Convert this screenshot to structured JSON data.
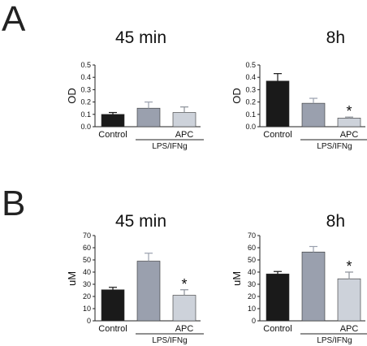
{
  "panels": [
    {
      "letter": "A"
    },
    {
      "letter": "B"
    }
  ],
  "chart_data": [
    {
      "type": "bar",
      "panel": "A",
      "title": "45 min",
      "ylabel": "OD",
      "ylim": [
        0,
        0.5
      ],
      "yticks": [
        "0.0",
        "0.1",
        "0.2",
        "0.3",
        "0.4",
        "0.5"
      ],
      "categories": [
        "Control",
        "",
        "APC"
      ],
      "group_label": "LPS/IFNg",
      "values": [
        0.1,
        0.15,
        0.115
      ],
      "errors": [
        0.015,
        0.05,
        0.045
      ],
      "bar_colors": [
        "#1a1a1a",
        "#9aa0ae",
        "#cdd2da"
      ],
      "significant": [
        false,
        false,
        false
      ]
    },
    {
      "type": "bar",
      "panel": "A",
      "title": "8h",
      "ylabel": "OD",
      "ylim": [
        0,
        0.5
      ],
      "yticks": [
        "0.0",
        "0.1",
        "0.2",
        "0.3",
        "0.4",
        "0.5"
      ],
      "categories": [
        "Control",
        "",
        "APC"
      ],
      "group_label": "LPS/IFNg",
      "values": [
        0.37,
        0.19,
        0.07
      ],
      "errors": [
        0.06,
        0.04,
        0.008
      ],
      "bar_colors": [
        "#1a1a1a",
        "#9aa0ae",
        "#cdd2da"
      ],
      "significant": [
        false,
        false,
        true
      ]
    },
    {
      "type": "bar",
      "panel": "B",
      "title": "45 min",
      "ylabel": "uM",
      "ylim": [
        0,
        70
      ],
      "yticks": [
        "0",
        "10",
        "20",
        "30",
        "40",
        "50",
        "60",
        "70"
      ],
      "categories": [
        "Control",
        "",
        "APC"
      ],
      "group_label": "LPS/IFNg",
      "values": [
        25.5,
        49,
        21
      ],
      "errors": [
        2,
        6.5,
        4.5
      ],
      "bar_colors": [
        "#1a1a1a",
        "#9aa0ae",
        "#cdd2da"
      ],
      "significant": [
        false,
        false,
        true
      ]
    },
    {
      "type": "bar",
      "panel": "B",
      "title": "8h",
      "ylabel": "uM",
      "ylim": [
        0,
        70
      ],
      "yticks": [
        "0",
        "10",
        "20",
        "30",
        "40",
        "50",
        "60",
        "70"
      ],
      "categories": [
        "Control",
        "",
        "APC"
      ],
      "group_label": "LPS/IFNg",
      "values": [
        38.5,
        56.5,
        34.5
      ],
      "errors": [
        2,
        4.5,
        5.5
      ],
      "bar_colors": [
        "#1a1a1a",
        "#9aa0ae",
        "#cdd2da"
      ],
      "significant": [
        false,
        false,
        true
      ]
    }
  ],
  "significance_marker": "*"
}
